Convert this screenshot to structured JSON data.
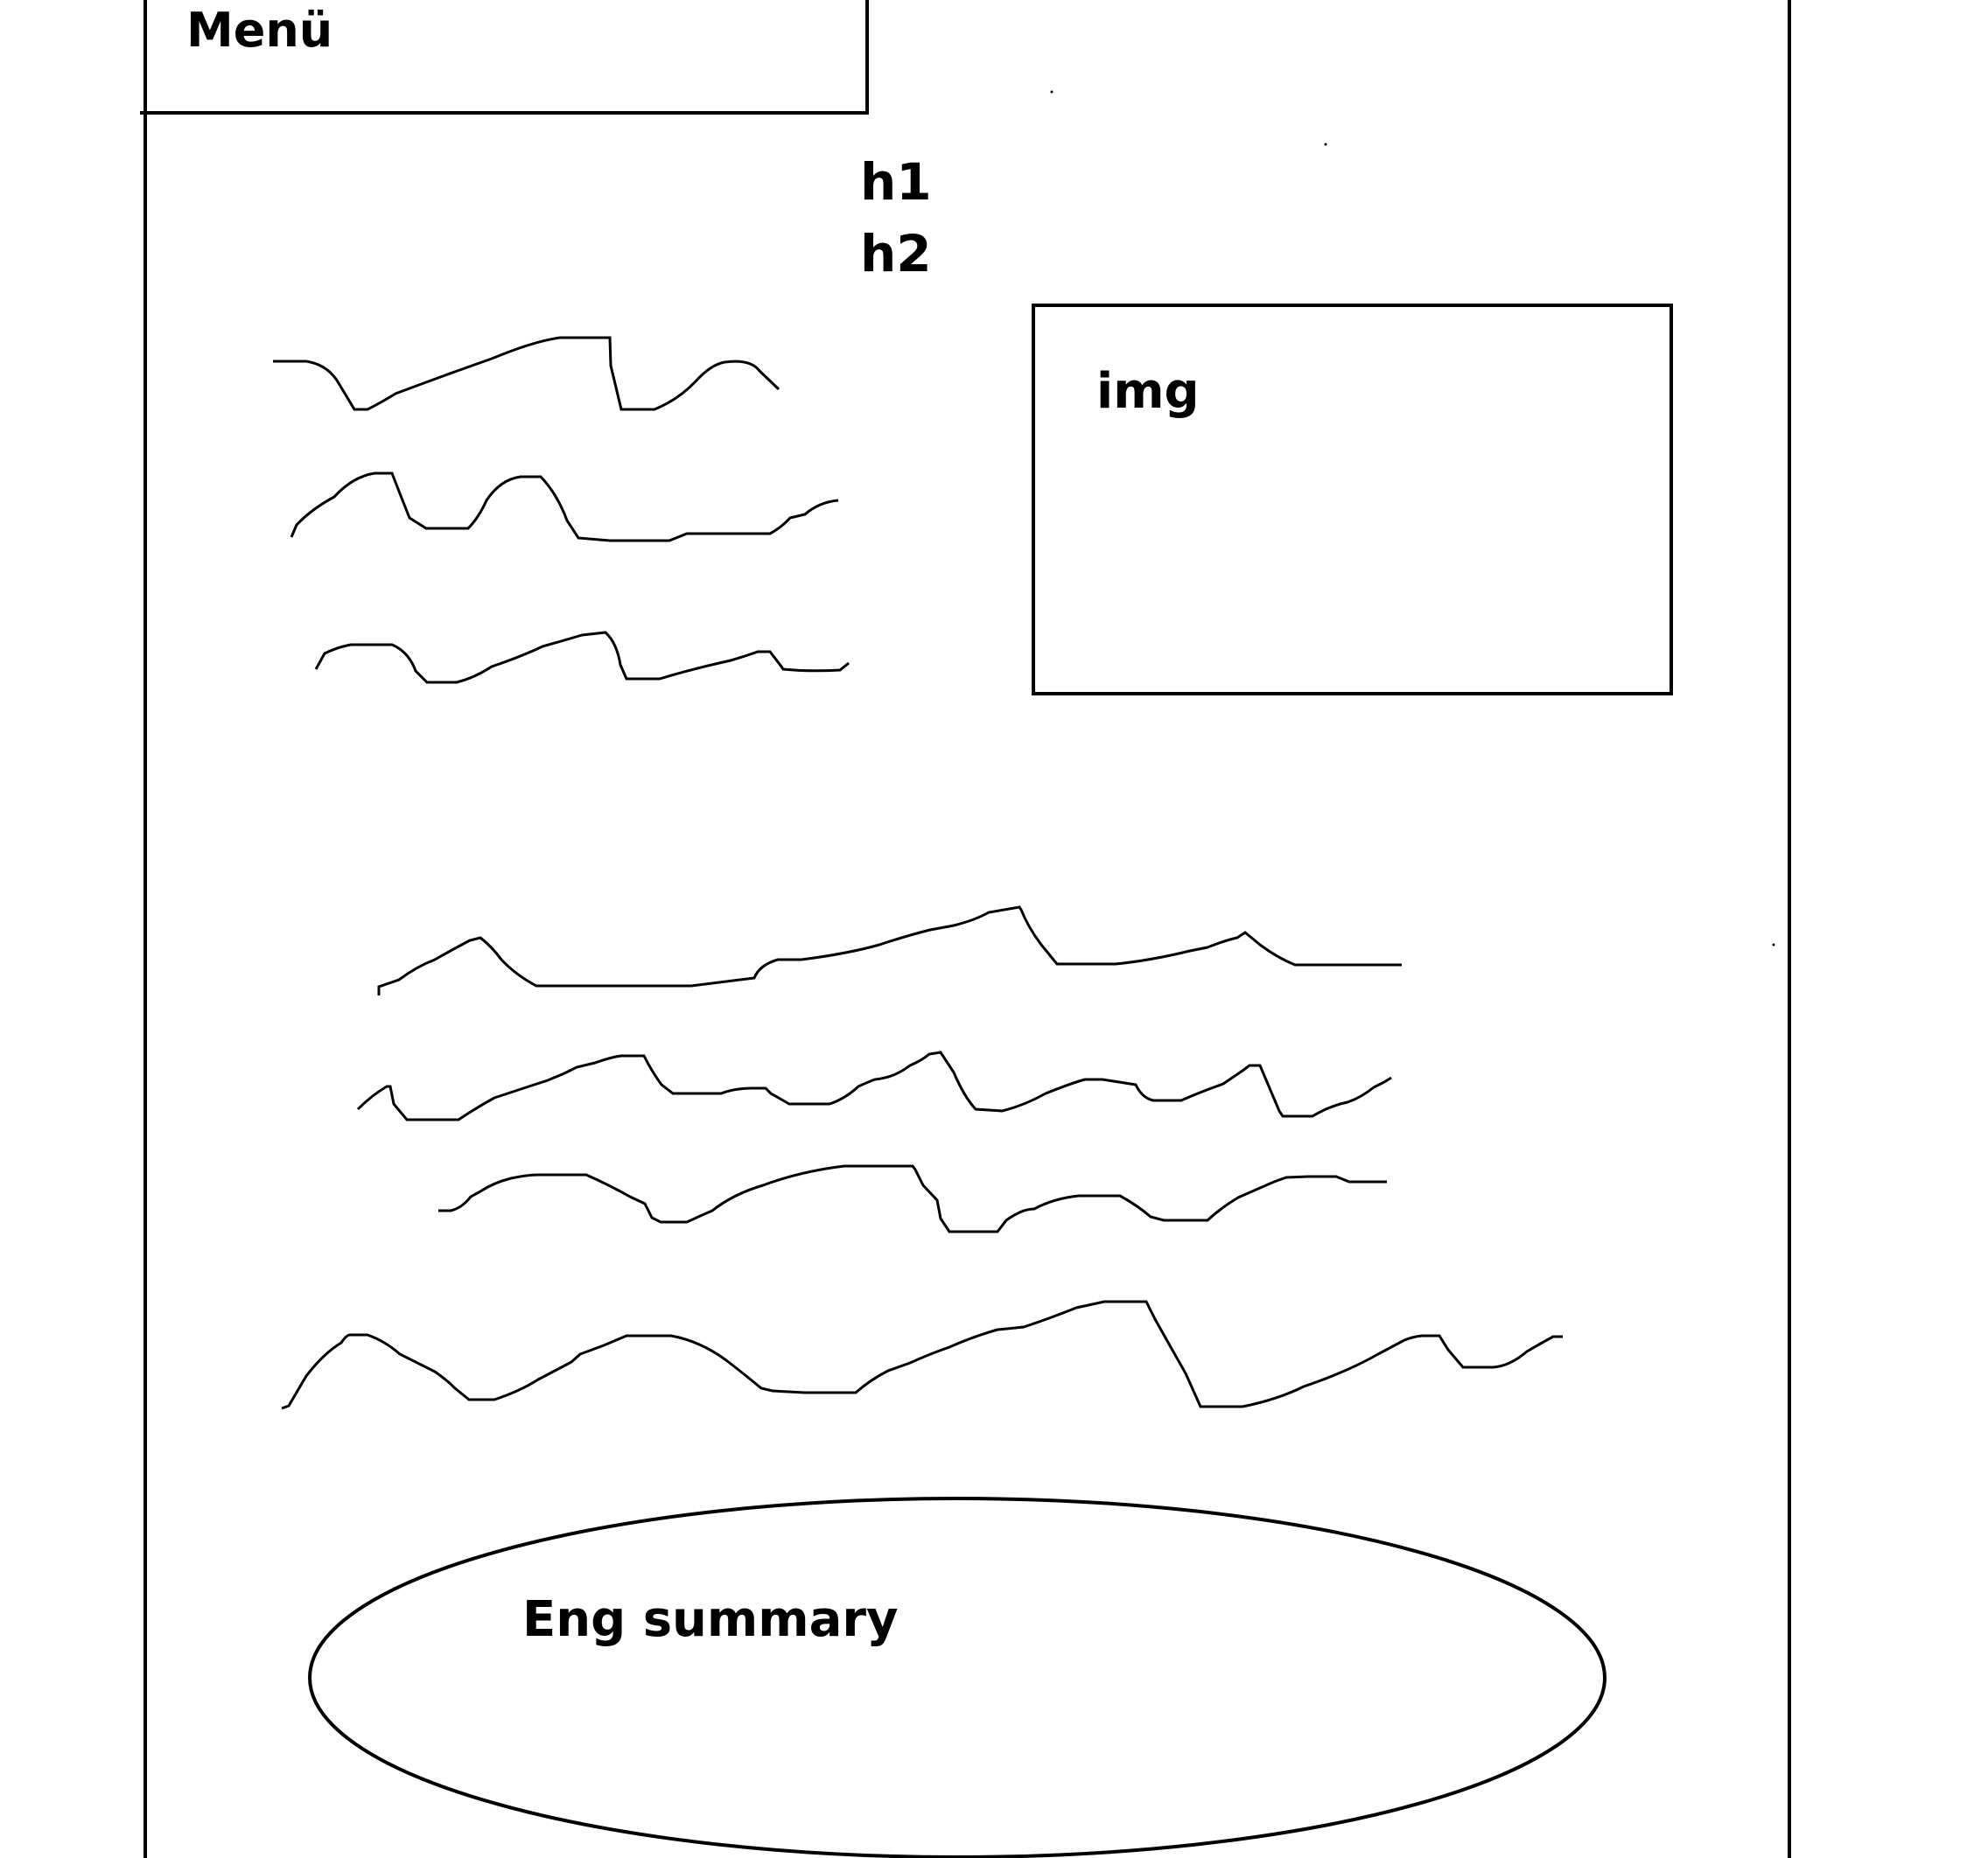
{
  "menu": {
    "label": "Menü"
  },
  "headings": {
    "h1": "h1",
    "h2": "h2"
  },
  "image_placeholder": {
    "label": "img"
  },
  "summary": {
    "label": "Eng summary"
  },
  "colors": {
    "ink": "#000000",
    "background": "#ffffff"
  }
}
